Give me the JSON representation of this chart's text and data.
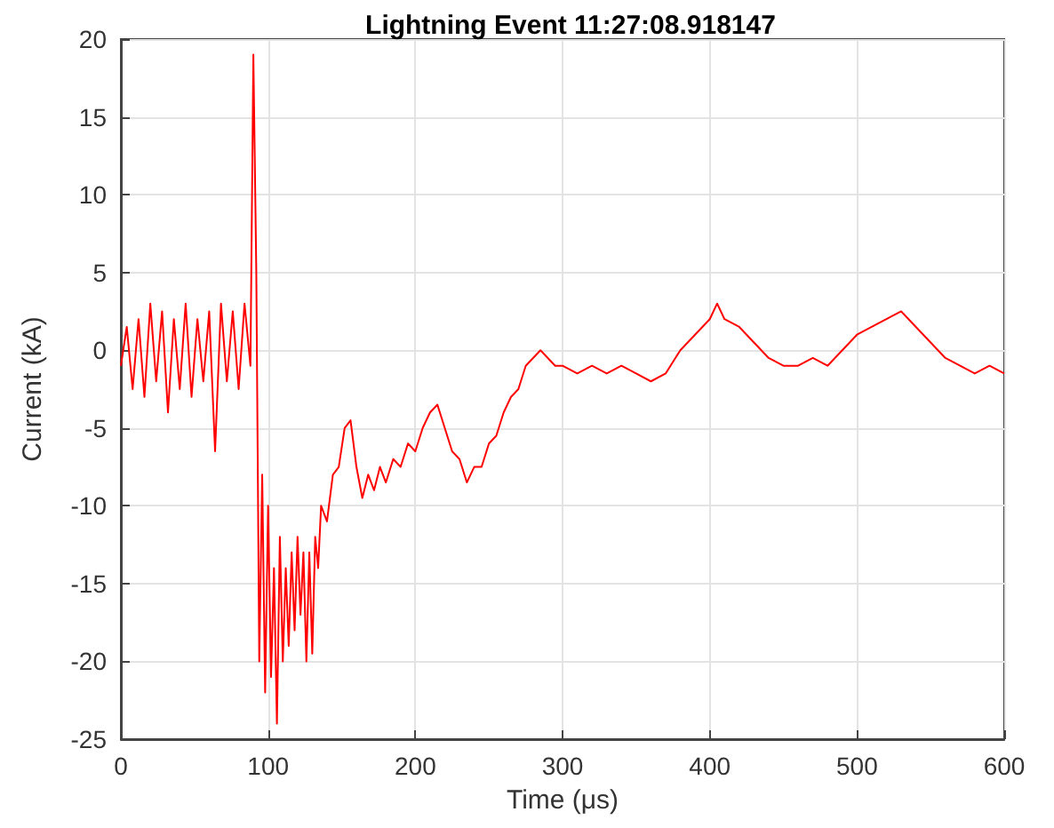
{
  "chart_data": {
    "type": "line",
    "title": "Lightning Event 11:27:08.918147",
    "xlabel": "Time (μs)",
    "ylabel": "Current (kA)",
    "xlim": [
      0,
      600
    ],
    "xticks": [
      0,
      100,
      200,
      300,
      400,
      500,
      600
    ],
    "ylim": [
      -25,
      20
    ],
    "yticks": [
      -25,
      -20,
      -15,
      -10,
      -5,
      0,
      5,
      10,
      15,
      20
    ],
    "grid": true,
    "marker": "none",
    "line_style": "solid",
    "series": [
      {
        "color": "#ff0000",
        "x": [
          0,
          4,
          8,
          12,
          16,
          20,
          24,
          28,
          32,
          36,
          40,
          44,
          48,
          52,
          56,
          60,
          64,
          68,
          72,
          76,
          80,
          84,
          88,
          90,
          92,
          94,
          96,
          98,
          100,
          102,
          104,
          106,
          108,
          110,
          112,
          114,
          116,
          118,
          120,
          122,
          124,
          126,
          128,
          130,
          132,
          134,
          136,
          140,
          144,
          148,
          152,
          156,
          160,
          164,
          168,
          172,
          176,
          180,
          185,
          190,
          195,
          200,
          205,
          210,
          215,
          220,
          225,
          230,
          235,
          240,
          245,
          250,
          255,
          260,
          265,
          270,
          275,
          280,
          285,
          290,
          295,
          300,
          310,
          320,
          330,
          340,
          350,
          360,
          370,
          380,
          390,
          400,
          405,
          410,
          420,
          430,
          440,
          450,
          460,
          470,
          480,
          490,
          500,
          510,
          520,
          530,
          540,
          550,
          560,
          570,
          580,
          590,
          600
        ],
        "values": [
          -1,
          1.5,
          -2.5,
          2,
          -3,
          3,
          -2,
          2.5,
          -4,
          2,
          -2.5,
          3,
          -3,
          2,
          -2,
          2.5,
          -6.5,
          3,
          -2,
          2.5,
          -2.5,
          3,
          -1,
          19,
          5,
          -20,
          -8,
          -22,
          -10,
          -21,
          -14,
          -24,
          -12,
          -20,
          -14,
          -19,
          -13,
          -18,
          -12,
          -17,
          -13,
          -20,
          -13,
          -19.5,
          -12,
          -14,
          -10,
          -11,
          -8,
          -7.5,
          -5,
          -4.5,
          -7.5,
          -9.5,
          -8,
          -9,
          -7.5,
          -8.5,
          -7,
          -7.5,
          -6,
          -6.5,
          -5,
          -4,
          -3.5,
          -5,
          -6.5,
          -7,
          -8.5,
          -7.5,
          -7.5,
          -6,
          -5.5,
          -4,
          -3,
          -2.5,
          -1,
          -0.5,
          0,
          -0.5,
          -1,
          -1,
          -1.5,
          -1,
          -1.5,
          -1,
          -1.5,
          -2,
          -1.5,
          0,
          1,
          2,
          3,
          2,
          1.5,
          0.5,
          -0.5,
          -1,
          -1,
          -0.5,
          -1,
          0,
          1,
          1.5,
          2,
          2.5,
          1.5,
          0.5,
          -0.5,
          -1,
          -1.5,
          -1,
          -1.5
        ]
      }
    ]
  }
}
